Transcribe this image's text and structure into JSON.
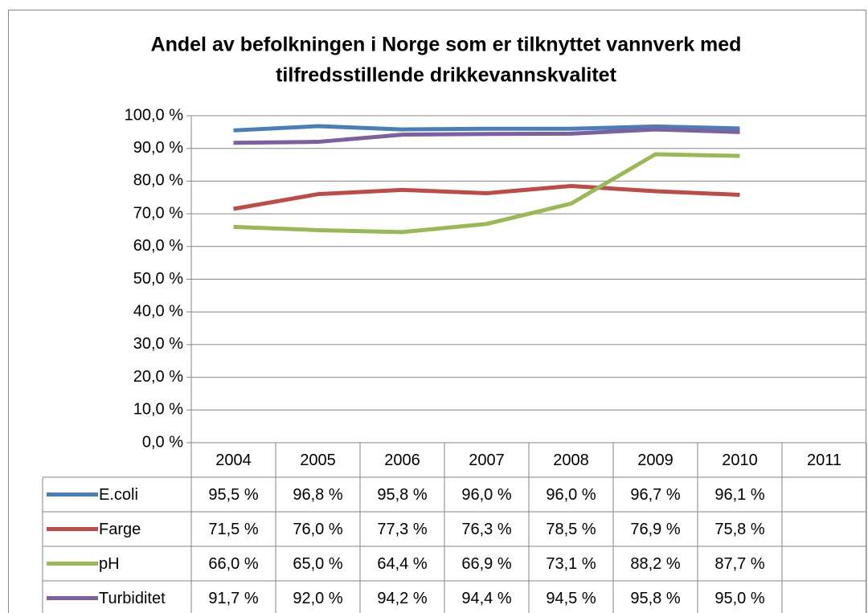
{
  "chart_data": {
    "type": "line",
    "title": "Andel av befolkningen i Norge som er tilknyttet vannverk med tilfredsstillende drikkevannskvalitet",
    "categories": [
      "2004",
      "2005",
      "2006",
      "2007",
      "2008",
      "2009",
      "2010",
      "2011"
    ],
    "series": [
      {
        "name": "E.coli",
        "color": "#4a7ebb",
        "values": [
          95.5,
          96.8,
          95.8,
          96.0,
          96.0,
          96.7,
          96.1,
          null
        ],
        "value_labels": [
          "95,5 %",
          "96,8 %",
          "95,8 %",
          "96,0 %",
          "96,0 %",
          "96,7 %",
          "96,1 %",
          null
        ]
      },
      {
        "name": "Farge",
        "color": "#be4b48",
        "values": [
          71.5,
          76.0,
          77.3,
          76.3,
          78.5,
          76.9,
          75.8,
          null
        ],
        "value_labels": [
          "71,5 %",
          "76,0 %",
          "77,3 %",
          "76,3 %",
          "78,5 %",
          "76,9 %",
          "75,8 %",
          null
        ]
      },
      {
        "name": "pH",
        "color": "#98b954",
        "values": [
          66.0,
          65.0,
          64.4,
          66.9,
          73.1,
          88.2,
          87.7,
          null
        ],
        "value_labels": [
          "66,0 %",
          "65,0 %",
          "64,4 %",
          "66,9 %",
          "73,1 %",
          "88,2 %",
          "87,7 %",
          null
        ]
      },
      {
        "name": "Turbiditet",
        "color": "#7d60a0",
        "values": [
          91.7,
          92.0,
          94.2,
          94.4,
          94.5,
          95.8,
          95.0,
          null
        ],
        "value_labels": [
          "91,7 %",
          "92,0 %",
          "94,2 %",
          "94,4 %",
          "94,5 %",
          "95,8 %",
          "95,0 %",
          null
        ]
      }
    ],
    "ylim": [
      0,
      100
    ],
    "yticks": [
      {
        "value": 0,
        "label": "0,0 %"
      },
      {
        "value": 10,
        "label": "10,0 %"
      },
      {
        "value": 20,
        "label": "20,0 %"
      },
      {
        "value": 30,
        "label": "30,0 %"
      },
      {
        "value": 40,
        "label": "40,0 %"
      },
      {
        "value": 50,
        "label": "50,0 %"
      },
      {
        "value": 60,
        "label": "60,0 %"
      },
      {
        "value": 70,
        "label": "70,0 %"
      },
      {
        "value": 80,
        "label": "80,0 %"
      },
      {
        "value": 90,
        "label": "90,0 %"
      },
      {
        "value": 100,
        "label": "100,0 %"
      }
    ],
    "grid": true
  }
}
